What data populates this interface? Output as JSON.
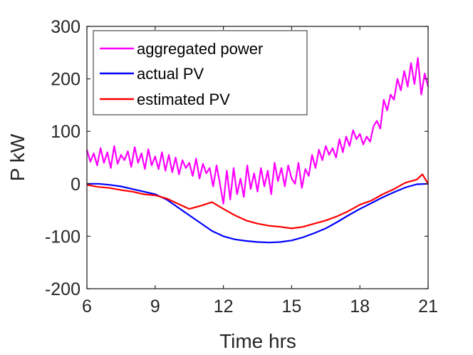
{
  "chart_data": {
    "type": "line",
    "title": "",
    "xlabel": "Time hrs",
    "ylabel": "P kW",
    "xlim": [
      6,
      21
    ],
    "ylim": [
      -200,
      300
    ],
    "xticks": [
      6,
      9,
      12,
      15,
      18,
      21
    ],
    "yticks": [
      -200,
      -100,
      0,
      100,
      200,
      300
    ],
    "xtick_labels": [
      "6",
      "9",
      "12",
      "15",
      "18",
      "21"
    ],
    "ytick_labels": [
      "-200",
      "-100",
      "0",
      "100",
      "200",
      "300"
    ],
    "grid": false,
    "legend_position": "top-left",
    "series": [
      {
        "name": "aggregated power",
        "color": "#ff00ff",
        "x": [
          6.0,
          6.15,
          6.3,
          6.45,
          6.6,
          6.75,
          6.9,
          7.05,
          7.2,
          7.35,
          7.5,
          7.65,
          7.8,
          7.95,
          8.1,
          8.25,
          8.4,
          8.55,
          8.7,
          8.85,
          9.0,
          9.15,
          9.3,
          9.45,
          9.6,
          9.75,
          9.9,
          10.05,
          10.2,
          10.35,
          10.5,
          10.65,
          10.8,
          10.95,
          11.1,
          11.25,
          11.4,
          11.55,
          11.7,
          11.85,
          12.0,
          12.15,
          12.3,
          12.45,
          12.6,
          12.75,
          12.9,
          13.05,
          13.2,
          13.35,
          13.5,
          13.65,
          13.8,
          13.95,
          14.1,
          14.25,
          14.4,
          14.55,
          14.7,
          14.85,
          15.0,
          15.15,
          15.3,
          15.45,
          15.6,
          15.75,
          15.9,
          16.05,
          16.2,
          16.35,
          16.5,
          16.65,
          16.8,
          16.95,
          17.1,
          17.25,
          17.4,
          17.55,
          17.7,
          17.85,
          18.0,
          18.15,
          18.3,
          18.45,
          18.6,
          18.75,
          18.9,
          19.05,
          19.2,
          19.35,
          19.5,
          19.65,
          19.8,
          19.95,
          20.1,
          20.25,
          20.4,
          20.55,
          20.7,
          20.85,
          21.0
        ],
        "values": [
          65,
          42,
          58,
          35,
          68,
          40,
          60,
          30,
          72,
          38,
          55,
          45,
          62,
          32,
          70,
          40,
          58,
          28,
          66,
          35,
          52,
          28,
          60,
          25,
          55,
          22,
          50,
          18,
          45,
          30,
          40,
          15,
          48,
          10,
          38,
          20,
          30,
          -5,
          35,
          0,
          -38,
          25,
          -30,
          30,
          -20,
          10,
          -25,
          35,
          -10,
          20,
          -15,
          30,
          -5,
          25,
          -20,
          40,
          5,
          30,
          -5,
          35,
          10,
          0,
          40,
          -8,
          28,
          15,
          55,
          30,
          65,
          45,
          72,
          55,
          68,
          50,
          85,
          60,
          90,
          72,
          102,
          85,
          95,
          75,
          90,
          80,
          110,
          120,
          105,
          160,
          140,
          170,
          160,
          200,
          178,
          215,
          185,
          230,
          190,
          240,
          170,
          210,
          185
        ]
      },
      {
        "name": "actual PV",
        "color": "#0000ff",
        "x": [
          6.0,
          6.5,
          7.0,
          7.5,
          8.0,
          8.5,
          9.0,
          9.5,
          10.0,
          10.5,
          11.0,
          11.5,
          12.0,
          12.5,
          13.0,
          13.5,
          14.0,
          14.5,
          15.0,
          15.5,
          16.0,
          16.5,
          17.0,
          17.5,
          18.0,
          18.5,
          19.0,
          19.5,
          20.0,
          20.5,
          21.0
        ],
        "values": [
          0,
          0,
          -2,
          -5,
          -10,
          -15,
          -20,
          -30,
          -45,
          -60,
          -75,
          -90,
          -100,
          -106,
          -109,
          -111,
          -112,
          -111,
          -108,
          -102,
          -94,
          -85,
          -73,
          -60,
          -48,
          -37,
          -26,
          -16,
          -7,
          -1,
          0
        ]
      },
      {
        "name": "estimated PV",
        "color": "#ff0000",
        "x": [
          6.0,
          6.5,
          7.0,
          7.5,
          8.0,
          8.5,
          9.0,
          9.5,
          10.0,
          10.5,
          11.0,
          11.5,
          12.0,
          12.5,
          13.0,
          13.5,
          14.0,
          14.5,
          15.0,
          15.5,
          16.0,
          16.5,
          17.0,
          17.5,
          18.0,
          18.5,
          19.0,
          19.5,
          20.0,
          20.5,
          20.75,
          21.0
        ],
        "values": [
          -2,
          -6,
          -8,
          -12,
          -15,
          -20,
          -22,
          -28,
          -38,
          -48,
          -42,
          -35,
          -48,
          -60,
          -70,
          -76,
          -80,
          -82,
          -85,
          -82,
          -76,
          -70,
          -62,
          -52,
          -40,
          -32,
          -20,
          -10,
          2,
          8,
          18,
          0
        ]
      }
    ]
  }
}
